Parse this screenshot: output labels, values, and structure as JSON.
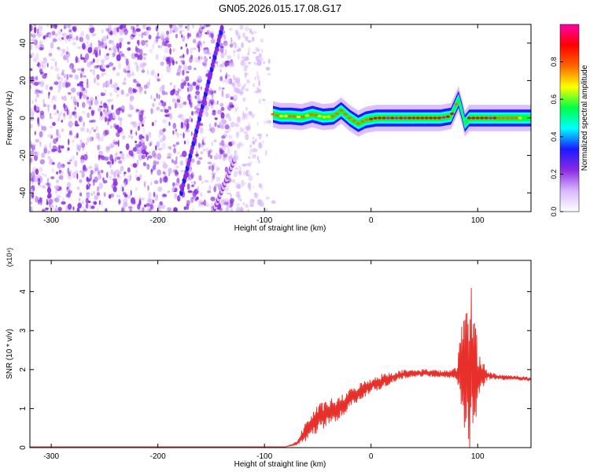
{
  "figure": {
    "title": "GN05.2026.015.17.08.G17"
  },
  "chart_data": [
    {
      "type": "heatmap",
      "xlabel": "Height of straight line (km)",
      "ylabel": "Frequency (Hz)",
      "xlim": [
        -320,
        150
      ],
      "ylim": [
        -50,
        50
      ],
      "xticks": [
        -300,
        -200,
        -100,
        0,
        100
      ],
      "xtick_labels": [
        "-300",
        "-200",
        "-100",
        "0",
        "100"
      ],
      "yticks": [
        -40,
        -20,
        0,
        20,
        40
      ],
      "ytick_labels": [
        "-40",
        "-20",
        "0",
        "20",
        "40"
      ],
      "colorbar": {
        "label": "Normalized spectral amplitude",
        "range": [
          0,
          1
        ],
        "ticks": [
          0.0,
          0.2,
          0.4,
          0.6,
          0.8
        ],
        "tick_labels": [
          "0.0",
          "0.2",
          "0.4",
          "0.6",
          "0.8"
        ],
        "colors": [
          "#ffffff",
          "#d9b8ff",
          "#8a2be2",
          "#1a1aff",
          "#00ffff",
          "#00ff44",
          "#ffff00",
          "#ff6600",
          "#ff0000",
          "#ff00aa"
        ]
      },
      "noise_region_x": [
        -320,
        -95
      ],
      "diagonal_streaks": [
        {
          "x": [
            -178,
            -140
          ],
          "y": [
            -40,
            48
          ],
          "level": 0.22
        },
        {
          "x": [
            -148,
            -128
          ],
          "y": [
            -50,
            -22
          ],
          "level": 0.12
        }
      ],
      "main_ridge": {
        "x": [
          -92,
          -85,
          -75,
          -65,
          -55,
          -45,
          -35,
          -28,
          -20,
          -12,
          -5,
          5,
          15,
          25,
          35,
          45,
          55,
          65,
          75,
          82,
          85,
          88,
          92,
          100,
          110,
          120,
          130,
          140,
          150
        ],
        "freq": [
          2,
          1,
          1,
          0.5,
          2,
          0.5,
          1,
          4,
          0,
          -3,
          -1,
          0,
          0,
          0,
          0,
          0,
          0,
          0,
          1,
          10,
          4,
          -3,
          0,
          0,
          0,
          0,
          0,
          0,
          0
        ],
        "level": [
          0.75,
          0.7,
          0.72,
          0.7,
          0.8,
          0.7,
          0.75,
          0.72,
          0.7,
          0.85,
          0.8,
          0.9,
          0.92,
          0.92,
          0.95,
          0.9,
          0.9,
          0.92,
          0.9,
          0.7,
          0.65,
          0.6,
          0.85,
          0.9,
          0.92,
          0.85,
          0.8,
          0.7,
          0.65
        ]
      }
    },
    {
      "type": "line",
      "xlabel": "Height of straight line (km)",
      "ylabel": "SNR (10 * v/v)",
      "y_multiplier_label": "(x10⁴)",
      "xlim": [
        -320,
        150
      ],
      "ylim": [
        0,
        4.8
      ],
      "xticks": [
        -300,
        -200,
        -100,
        0,
        100
      ],
      "xtick_labels": [
        "-300",
        "-200",
        "-100",
        "0",
        "100"
      ],
      "yticks": [
        0,
        1,
        2,
        3,
        4
      ],
      "ytick_labels": [
        "0",
        "1",
        "2",
        "3",
        "4"
      ],
      "series": [
        {
          "color": "#e8302a",
          "x": [
            -320,
            -150,
            -80,
            -70,
            -60,
            -50,
            -40,
            -30,
            -20,
            -10,
            0,
            10,
            20,
            30,
            40,
            50,
            60,
            70,
            80,
            85,
            90,
            92,
            95,
            98,
            100,
            110,
            120,
            130,
            140,
            150
          ],
          "y": [
            0.02,
            0.02,
            0.02,
            0.1,
            0.45,
            0.75,
            0.9,
            1.0,
            1.25,
            1.45,
            1.6,
            1.7,
            1.8,
            1.88,
            1.9,
            1.92,
            1.9,
            1.88,
            1.9,
            2.0,
            2.2,
            2.0,
            2.0,
            2.0,
            1.9,
            1.85,
            1.8,
            1.8,
            1.78,
            1.75
          ],
          "oscillation_amplitude": [
            0,
            0,
            0,
            0.05,
            0.3,
            0.35,
            0.35,
            0.3,
            0.25,
            0.22,
            0.2,
            0.2,
            0.15,
            0.12,
            0.1,
            0.1,
            0.1,
            0.1,
            0.15,
            1.2,
            2.0,
            2.4,
            2.0,
            1.5,
            0.6,
            0.1,
            0.08,
            0.06,
            0.06,
            0.05
          ]
        }
      ]
    }
  ]
}
